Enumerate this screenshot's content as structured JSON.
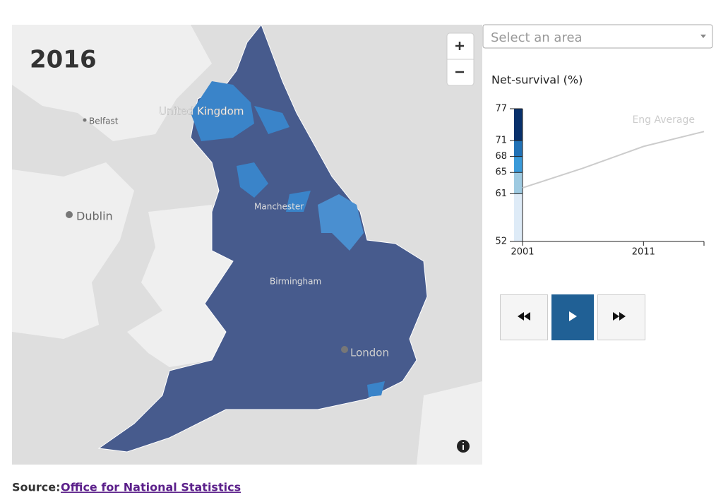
{
  "map": {
    "year": "2016",
    "labels": [
      {
        "text": "United Kingdom",
        "place": "country"
      },
      {
        "text": "Belfast",
        "place": "city"
      },
      {
        "text": "Dublin",
        "place": "city"
      },
      {
        "text": "Manchester",
        "place": "overlay"
      },
      {
        "text": "Birmingham",
        "place": "overlay"
      },
      {
        "text": "London",
        "place": "city"
      }
    ]
  },
  "select_placeholder": "Select an area",
  "chart_data": {
    "type": "line",
    "title": "Net-survival (%)",
    "x": [
      2001,
      2006,
      2011,
      2016
    ],
    "xlim": [
      2001,
      2016
    ],
    "xticks": [
      2001,
      2011
    ],
    "ylim": [
      52,
      77
    ],
    "yticks": [
      52,
      61,
      65,
      68,
      71,
      77
    ],
    "legend_colors": [
      "#deebf7",
      "#9ecae1",
      "#3a9ad9",
      "#2171b5",
      "#08306b"
    ],
    "series": [
      {
        "name": "Eng Average",
        "color": "#cccccc",
        "values": [
          62.1,
          65.8,
          69.9,
          72.7
        ]
      }
    ]
  },
  "source": {
    "label": "Source:",
    "link": "Office for National Statistics"
  }
}
